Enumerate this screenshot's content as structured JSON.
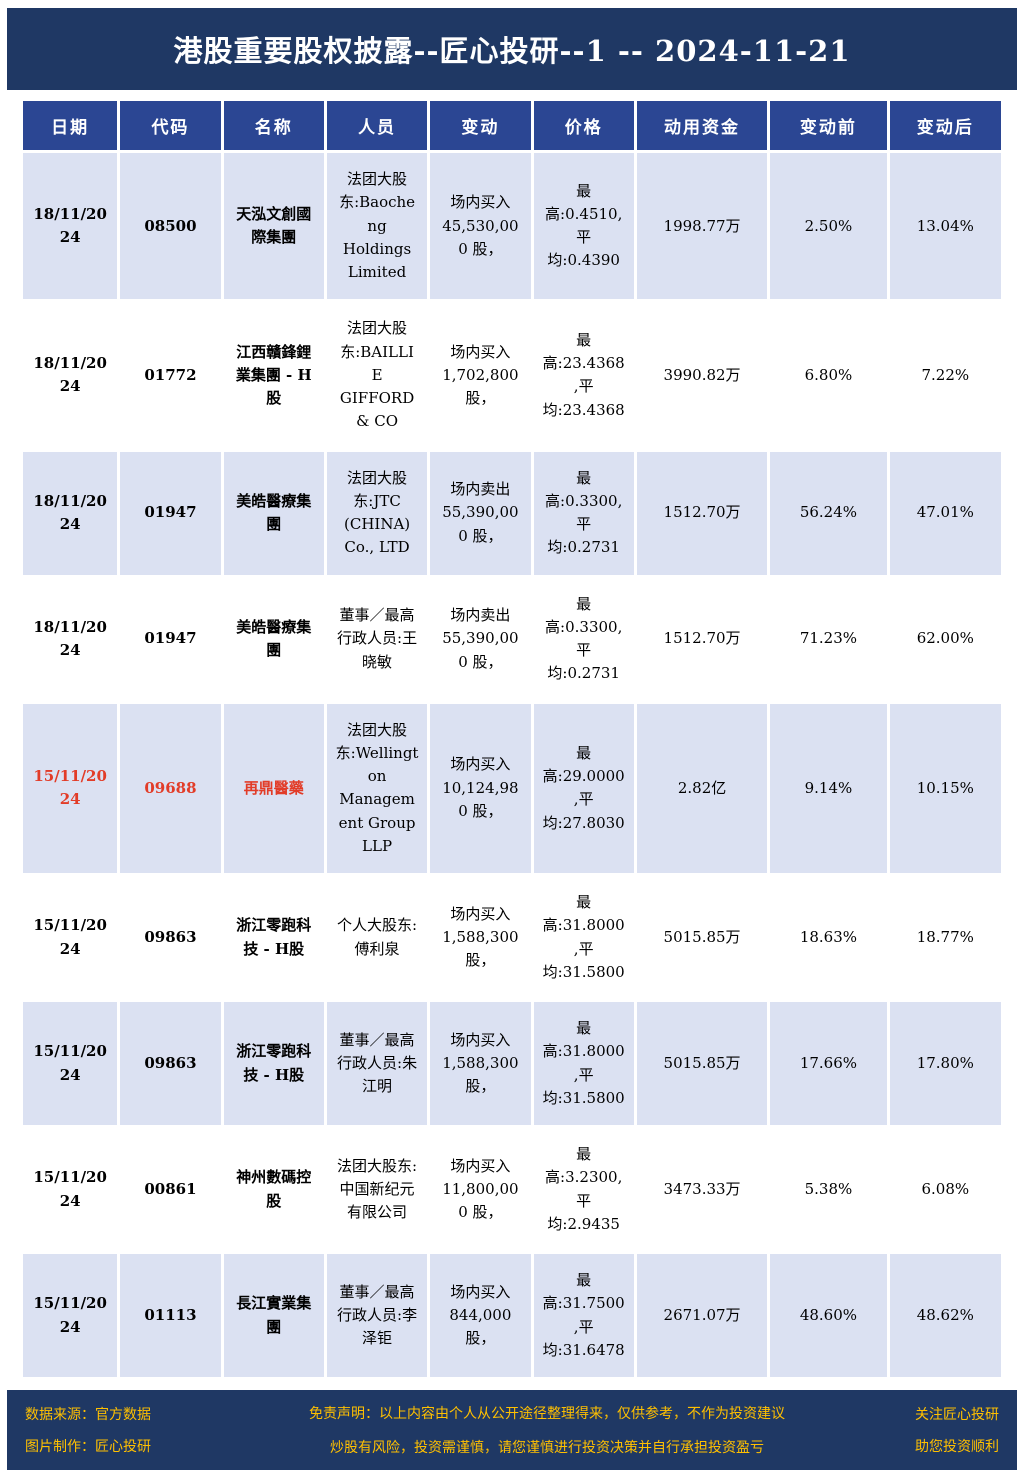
{
  "title": "港股重要股权披露--匠心投研--1 -- 2024-11-21",
  "colors": {
    "title_bg": "#1f3864",
    "header_bg": "#2b4693",
    "row_shade": "#dbe1f2",
    "text_blue": "#2e5597",
    "text_red": "#e23c28",
    "footer_text": "#ffc000"
  },
  "table": {
    "col_keys": [
      "date",
      "code",
      "name",
      "person",
      "change",
      "price",
      "funds",
      "before",
      "after"
    ],
    "headers": [
      "日期",
      "代码",
      "名称",
      "人员",
      "变动",
      "价格",
      "动用资金",
      "变动前",
      "变动后"
    ],
    "rows": [
      {
        "red": false,
        "cells": [
          "18/11/2024",
          "08500",
          "天泓文創國際集團",
          "法团大股东:Baocheng Holdings Limited",
          "场内买入 45,530,000 股，",
          "最高:0.4510,平均:0.4390",
          "1998.77万",
          "2.50%",
          "13.04%"
        ]
      },
      {
        "red": false,
        "cells": [
          "18/11/2024",
          "01772",
          "江西贛鋒鋰業集團 - H股",
          "法团大股东:BAILLIE GIFFORD & CO",
          "场内买入 1,702,800 股，",
          "最高:23.4368,平均:23.4368",
          "3990.82万",
          "6.80%",
          "7.22%"
        ]
      },
      {
        "red": false,
        "cells": [
          "18/11/2024",
          "01947",
          "美皓醫療集團",
          "法团大股东:JTC (CHINA) Co., LTD",
          "场内卖出 55,390,000 股，",
          "最高:0.3300,平均:0.2731",
          "1512.70万",
          "56.24%",
          "47.01%"
        ]
      },
      {
        "red": false,
        "cells": [
          "18/11/2024",
          "01947",
          "美皓醫療集團",
          "董事／最高行政人员:王晓敏",
          "场内卖出 55,390,000 股，",
          "最高:0.3300,平均:0.2731",
          "1512.70万",
          "71.23%",
          "62.00%"
        ]
      },
      {
        "red": true,
        "cells": [
          "15/11/2024",
          "09688",
          "再鼎醫藥",
          "法团大股东:Wellington Management Group LLP",
          "场内买入 10,124,980 股，",
          "最高:29.0000,平均:27.8030",
          "2.82亿",
          "9.14%",
          "10.15%"
        ]
      },
      {
        "red": false,
        "cells": [
          "15/11/2024",
          "09863",
          "浙江零跑科技 - H股",
          "个人大股东:傅利泉",
          "场内买入 1,588,300 股，",
          "最高:31.8000,平均:31.5800",
          "5015.85万",
          "18.63%",
          "18.77%"
        ]
      },
      {
        "red": false,
        "cells": [
          "15/11/2024",
          "09863",
          "浙江零跑科技 - H股",
          "董事／最高行政人员:朱江明",
          "场内买入 1,588,300 股，",
          "最高:31.8000,平均:31.5800",
          "5015.85万",
          "17.66%",
          "17.80%"
        ]
      },
      {
        "red": false,
        "cells": [
          "15/11/2024",
          "00861",
          "神州數碼控股",
          "法团大股东:中国新纪元有限公司",
          "场内买入 11,800,000 股，",
          "最高:3.2300,平均:2.9435",
          "3473.33万",
          "5.38%",
          "6.08%"
        ]
      },
      {
        "red": false,
        "cells": [
          "15/11/2024",
          "01113",
          "長江實業集團",
          "董事／最高行政人员:李泽钜",
          "场内买入 844,000 股，",
          "最高:31.7500,平均:31.6478",
          "2671.07万",
          "48.60%",
          "48.62%"
        ]
      }
    ]
  },
  "footer": {
    "left": [
      "数据来源：官方数据",
      "图片制作：匠心投研"
    ],
    "center": [
      "免责声明：以上内容由个人从公开途径整理得来，仅供参考，不作为投资建议",
      "炒股有风险，投资需谨慎，请您谨慎进行投资决策并自行承担投资盈亏"
    ],
    "right": [
      "关注匠心投研",
      "助您投资顺利"
    ]
  }
}
